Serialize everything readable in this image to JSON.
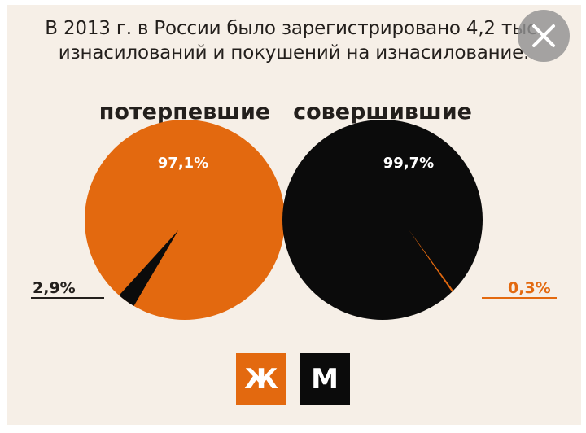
{
  "title_line1": "В 2013 г. в России было зарегистрировано 4,2 тыс.",
  "title_line2": "изнасилований и покушений на изнасилование.",
  "colors": {
    "orange": "#e3690f",
    "black": "#0b0b0b",
    "text": "#231f1c",
    "background": "#f6efe7"
  },
  "chart_data": [
    {
      "type": "pie",
      "title": "потерпевшие",
      "slices": [
        {
          "label": "97,1%",
          "value": 97.1,
          "color": "#e3690f"
        },
        {
          "label": "2,9%",
          "value": 2.9,
          "color": "#0b0b0b"
        }
      ]
    },
    {
      "type": "pie",
      "title": "совершившие",
      "slices": [
        {
          "label": "99,7%",
          "value": 99.7,
          "color": "#0b0b0b"
        },
        {
          "label": "0,3%",
          "value": 0.3,
          "color": "#e3690f"
        }
      ]
    }
  ],
  "legend": [
    {
      "label": "Ж",
      "color": "#e3690f"
    },
    {
      "label": "М",
      "color": "#0b0b0b"
    }
  ],
  "close_icon": "close-icon"
}
